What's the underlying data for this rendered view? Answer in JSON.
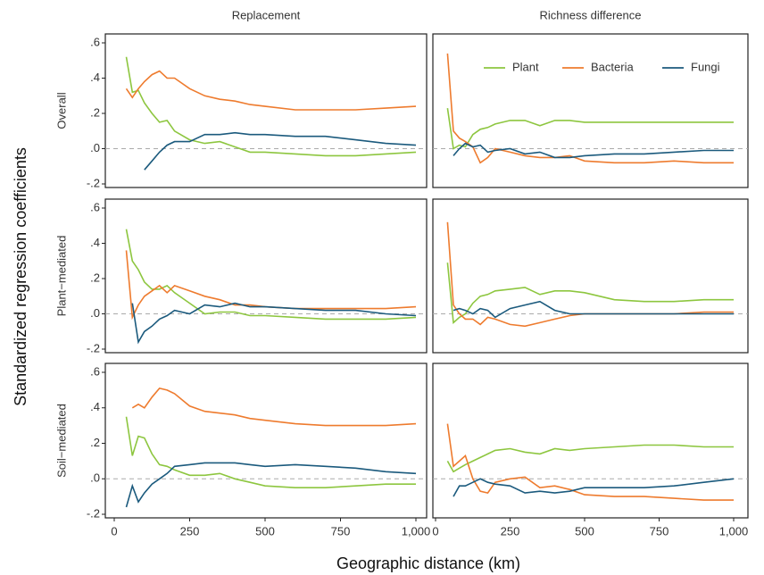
{
  "figure": {
    "ylabel": "Standardized regression coefficients",
    "xlabel": "Geographic distance (km)",
    "columns": [
      "Replacement",
      "Richness difference"
    ],
    "rows": [
      "Overall",
      "Plant−mediated",
      "Soil−mediated"
    ]
  },
  "chart_data": [
    {
      "type": "line",
      "x": [
        40,
        60,
        80,
        100,
        125,
        150,
        175,
        200,
        250,
        300,
        350,
        400,
        450,
        500,
        600,
        700,
        800,
        900,
        1000
      ],
      "xlim": [
        0,
        1000
      ],
      "ylim": [
        -0.2,
        0.6
      ],
      "hline": 0,
      "yticks": [
        {
          "value": 0.6,
          "label": ".6"
        },
        {
          "value": 0.4,
          "label": ".4"
        },
        {
          "value": 0.2,
          "label": ".2"
        },
        {
          "value": 0,
          "label": ".0"
        },
        {
          "value": -0.2,
          "label": "-.2"
        }
      ],
      "series": [
        {
          "color": "#8dc63f",
          "values": [
            0.52,
            0.32,
            0.33,
            0.26,
            0.2,
            0.15,
            0.16,
            0.1,
            0.05,
            0.03,
            0.04,
            0.01,
            -0.02,
            -0.02,
            -0.03,
            -0.04,
            -0.04,
            -0.03,
            -0.02
          ]
        },
        {
          "color": "#ee7b2e",
          "values": [
            0.34,
            0.29,
            0.34,
            0.38,
            0.42,
            0.44,
            0.4,
            0.4,
            0.34,
            0.3,
            0.28,
            0.27,
            0.25,
            0.24,
            0.22,
            0.22,
            0.22,
            0.23,
            0.24
          ]
        },
        {
          "color": "#1b5a7d",
          "values": [
            null,
            null,
            null,
            -0.12,
            -0.07,
            -0.02,
            0.02,
            0.04,
            0.04,
            0.08,
            0.08,
            0.09,
            0.08,
            0.08,
            0.07,
            0.07,
            0.05,
            0.03,
            0.02
          ]
        }
      ]
    },
    {
      "type": "line",
      "x": [
        40,
        60,
        80,
        100,
        125,
        150,
        175,
        200,
        250,
        300,
        350,
        400,
        450,
        500,
        600,
        700,
        800,
        900,
        1000
      ],
      "xlim": [
        0,
        1000
      ],
      "ylim": [
        -0.2,
        0.6
      ],
      "hline": 0,
      "legend": "upper right",
      "series": [
        {
          "name": "Plant",
          "color": "#8dc63f",
          "values": [
            0.23,
            0.0,
            0.02,
            0.01,
            0.08,
            0.11,
            0.12,
            0.14,
            0.16,
            0.16,
            0.13,
            0.16,
            0.16,
            0.15,
            0.15,
            0.15,
            0.15,
            0.15,
            0.15
          ]
        },
        {
          "name": "Bacteria",
          "color": "#ee7b2e",
          "values": [
            0.54,
            0.1,
            0.06,
            0.04,
            0.01,
            -0.08,
            -0.05,
            0.0,
            -0.02,
            -0.04,
            -0.05,
            -0.05,
            -0.04,
            -0.07,
            -0.08,
            -0.08,
            -0.07,
            -0.08,
            -0.08
          ]
        },
        {
          "name": "Fungi",
          "color": "#1b5a7d",
          "values": [
            null,
            -0.04,
            0.0,
            0.03,
            0.01,
            0.02,
            -0.02,
            -0.01,
            0.0,
            -0.03,
            -0.02,
            -0.05,
            -0.05,
            -0.04,
            -0.03,
            -0.03,
            -0.02,
            -0.01,
            -0.01
          ]
        }
      ]
    },
    {
      "type": "line",
      "x": [
        40,
        60,
        80,
        100,
        125,
        150,
        175,
        200,
        250,
        300,
        350,
        400,
        450,
        500,
        600,
        700,
        800,
        900,
        1000
      ],
      "xlim": [
        0,
        1000
      ],
      "ylim": [
        -0.2,
        0.6
      ],
      "hline": 0,
      "yticks": [
        {
          "value": 0.6,
          "label": ".6"
        },
        {
          "value": 0.4,
          "label": ".4"
        },
        {
          "value": 0.2,
          "label": ".2"
        },
        {
          "value": 0,
          "label": ".0"
        },
        {
          "value": -0.2,
          "label": "-.2"
        }
      ],
      "series": [
        {
          "color": "#8dc63f",
          "values": [
            0.48,
            0.3,
            0.25,
            0.18,
            0.14,
            0.14,
            0.16,
            0.12,
            0.06,
            0.0,
            0.01,
            0.01,
            -0.01,
            -0.01,
            -0.02,
            -0.03,
            -0.03,
            -0.03,
            -0.02
          ]
        },
        {
          "color": "#ee7b2e",
          "values": [
            0.36,
            -0.02,
            0.05,
            0.1,
            0.13,
            0.16,
            0.12,
            0.16,
            0.13,
            0.1,
            0.08,
            0.05,
            0.05,
            0.04,
            0.03,
            0.03,
            0.03,
            0.03,
            0.04
          ]
        },
        {
          "color": "#1b5a7d",
          "values": [
            null,
            0.06,
            -0.16,
            -0.1,
            -0.07,
            -0.03,
            -0.01,
            0.02,
            0.0,
            0.05,
            0.04,
            0.06,
            0.04,
            0.04,
            0.03,
            0.02,
            0.02,
            0.0,
            -0.01
          ]
        }
      ]
    },
    {
      "type": "line",
      "x": [
        40,
        60,
        80,
        100,
        125,
        150,
        175,
        200,
        250,
        300,
        350,
        400,
        450,
        500,
        600,
        700,
        800,
        900,
        1000
      ],
      "xlim": [
        0,
        1000
      ],
      "ylim": [
        -0.2,
        0.6
      ],
      "hline": 0,
      "series": [
        {
          "color": "#8dc63f",
          "values": [
            0.29,
            -0.05,
            -0.02,
            0.0,
            0.06,
            0.1,
            0.11,
            0.13,
            0.14,
            0.15,
            0.11,
            0.13,
            0.13,
            0.12,
            0.08,
            0.07,
            0.07,
            0.08,
            0.08
          ]
        },
        {
          "color": "#ee7b2e",
          "values": [
            0.52,
            0.05,
            0.0,
            -0.03,
            -0.03,
            -0.06,
            -0.02,
            -0.03,
            -0.06,
            -0.07,
            -0.05,
            -0.03,
            -0.01,
            0.0,
            0.0,
            0.0,
            0.0,
            0.01,
            0.01
          ]
        },
        {
          "color": "#1b5a7d",
          "values": [
            null,
            0.02,
            0.03,
            0.02,
            0.0,
            0.03,
            0.02,
            -0.02,
            0.03,
            0.05,
            0.07,
            0.02,
            0.0,
            0.0,
            0.0,
            0.0,
            0.0,
            0.0,
            0.0
          ]
        }
      ]
    },
    {
      "type": "line",
      "x": [
        40,
        60,
        80,
        100,
        125,
        150,
        175,
        200,
        250,
        300,
        350,
        400,
        450,
        500,
        600,
        700,
        800,
        900,
        1000
      ],
      "xlim": [
        0,
        1000
      ],
      "ylim": [
        -0.2,
        0.6
      ],
      "hline": 0,
      "yticks": [
        {
          "value": 0.6,
          "label": ".6"
        },
        {
          "value": 0.4,
          "label": ".4"
        },
        {
          "value": 0.2,
          "label": ".2"
        },
        {
          "value": 0,
          "label": ".0"
        },
        {
          "value": -0.2,
          "label": "-.2"
        }
      ],
      "xticks": [
        0,
        250,
        500,
        750,
        {
          "value": 1000,
          "label": "1,000"
        }
      ],
      "series": [
        {
          "color": "#8dc63f",
          "values": [
            0.35,
            0.13,
            0.24,
            0.23,
            0.14,
            0.08,
            0.07,
            0.05,
            0.02,
            0.02,
            0.03,
            0.0,
            -0.02,
            -0.04,
            -0.05,
            -0.05,
            -0.04,
            -0.03,
            -0.03
          ]
        },
        {
          "color": "#ee7b2e",
          "values": [
            null,
            0.4,
            0.42,
            0.4,
            0.46,
            0.51,
            0.5,
            0.48,
            0.41,
            0.38,
            0.37,
            0.36,
            0.34,
            0.33,
            0.31,
            0.3,
            0.3,
            0.3,
            0.31
          ]
        },
        {
          "color": "#1b5a7d",
          "values": [
            -0.16,
            -0.04,
            -0.13,
            -0.08,
            -0.03,
            0.0,
            0.03,
            0.07,
            0.08,
            0.09,
            0.09,
            0.09,
            0.08,
            0.07,
            0.08,
            0.07,
            0.06,
            0.04,
            0.03
          ]
        }
      ]
    },
    {
      "type": "line",
      "x": [
        40,
        60,
        80,
        100,
        125,
        150,
        175,
        200,
        250,
        300,
        350,
        400,
        450,
        500,
        600,
        700,
        800,
        900,
        1000
      ],
      "xlim": [
        0,
        1000
      ],
      "ylim": [
        -0.2,
        0.6
      ],
      "hline": 0,
      "xticks": [
        0,
        250,
        500,
        750,
        {
          "value": 1000,
          "label": "1,000"
        }
      ],
      "series": [
        {
          "color": "#8dc63f",
          "values": [
            0.1,
            0.04,
            0.06,
            0.08,
            0.1,
            0.12,
            0.14,
            0.16,
            0.17,
            0.15,
            0.14,
            0.17,
            0.16,
            0.17,
            0.18,
            0.19,
            0.19,
            0.18,
            0.18
          ]
        },
        {
          "color": "#ee7b2e",
          "values": [
            0.31,
            0.07,
            0.1,
            0.13,
            0.0,
            -0.07,
            -0.08,
            -0.02,
            0.0,
            0.01,
            -0.05,
            -0.04,
            -0.06,
            -0.09,
            -0.1,
            -0.1,
            -0.11,
            -0.12,
            -0.12
          ]
        },
        {
          "color": "#1b5a7d",
          "values": [
            null,
            -0.1,
            -0.04,
            -0.04,
            -0.02,
            0.0,
            -0.02,
            -0.03,
            -0.04,
            -0.08,
            -0.07,
            -0.08,
            -0.07,
            -0.05,
            -0.05,
            -0.05,
            -0.04,
            -0.02,
            0.0
          ]
        }
      ]
    }
  ]
}
